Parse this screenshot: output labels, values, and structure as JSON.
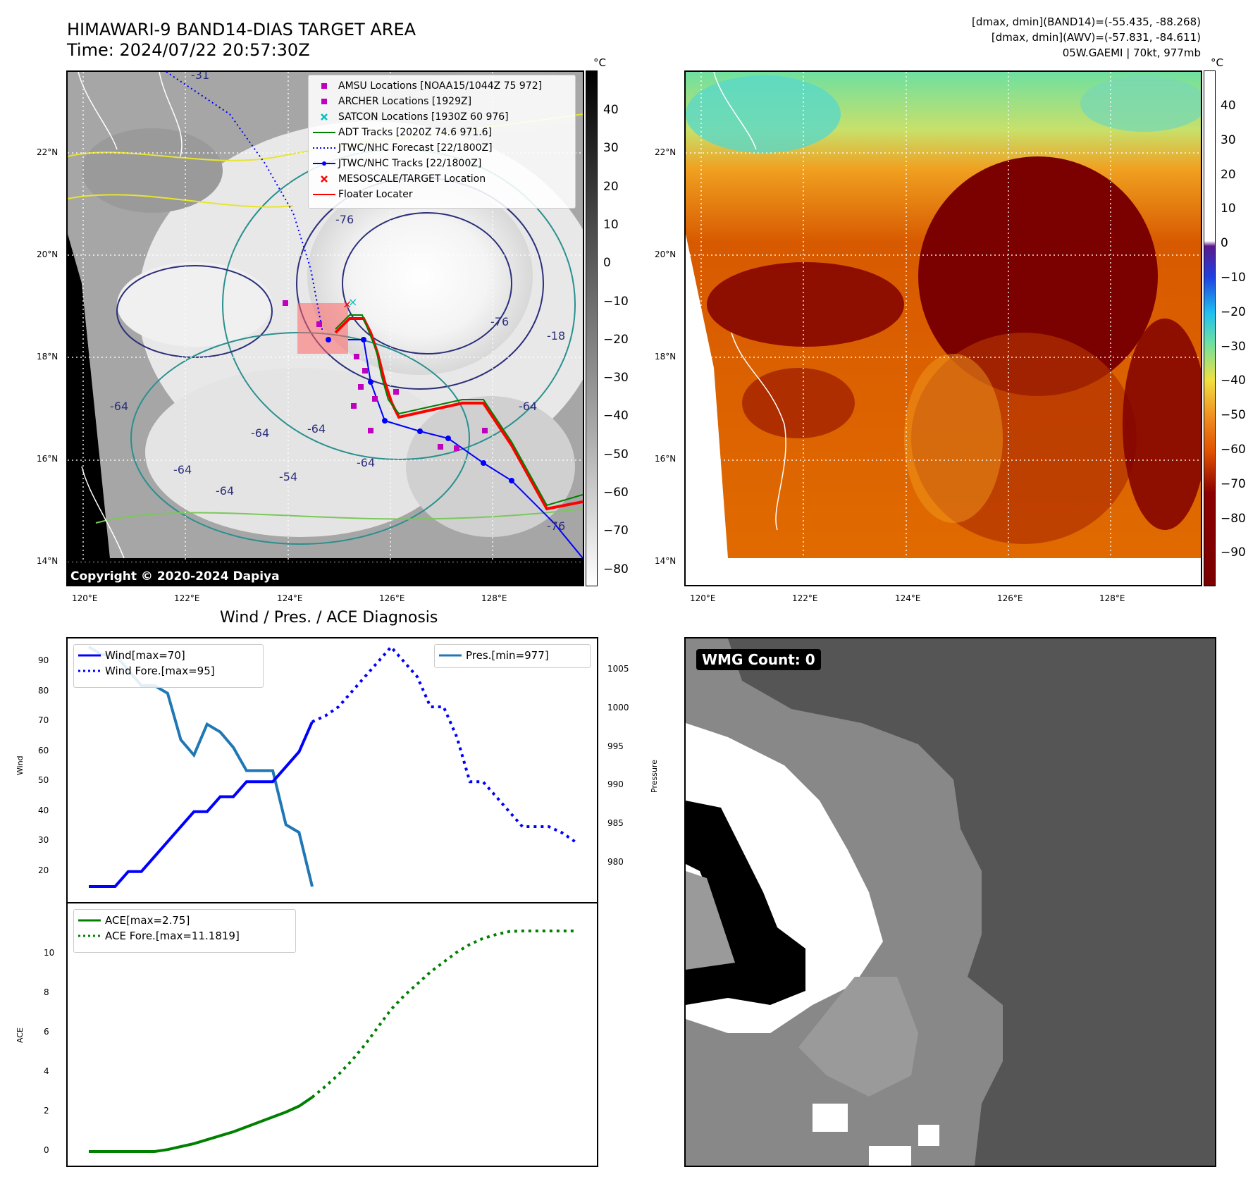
{
  "header": {
    "title_line1": "HIMAWARI-9 BAND14-DIAS TARGET AREA",
    "title_line2": "Time: 2024/07/22 20:57:30Z",
    "info_line1": "[dmax, dmin](BAND14)=(-55.435, -88.268)",
    "info_line2": "[dmax, dmin](AWV)=(-57.831, -84.611)",
    "info_line3": "05W.GAEMI | 70kt, 977mb"
  },
  "map_axes": {
    "lat_labels": [
      "22°N",
      "20°N",
      "18°N",
      "16°N",
      "14°N"
    ],
    "lon_labels": [
      "120°E",
      "122°E",
      "124°E",
      "126°E",
      "128°E"
    ]
  },
  "ir_map": {
    "legend": [
      {
        "label": "AMSU Locations [NOAA15/1044Z 75 972]",
        "symbol": "square",
        "color": "#bf00bf"
      },
      {
        "label": "ARCHER Locations [1929Z]",
        "symbol": "square",
        "color": "#bf00bf"
      },
      {
        "label": "SATCON Locations [1930Z 60 976]",
        "symbol": "x",
        "color": "#00bfbf"
      },
      {
        "label": "ADT Tracks [2020Z 74.6 971.6]",
        "symbol": "line",
        "color": "#008000"
      },
      {
        "label": "JTWC/NHC Forecast [22/1800Z]",
        "symbol": "dotted",
        "color": "#0000ff"
      },
      {
        "label": "JTWC/NHC Tracks [22/1800Z]",
        "symbol": "line-dot",
        "color": "#0000ff"
      },
      {
        "label": "MESOSCALE/TARGET Location",
        "symbol": "x",
        "color": "#ff0000"
      },
      {
        "label": "Floater Locater",
        "symbol": "line",
        "color": "#ff0000"
      }
    ],
    "contour_labels": [
      "-31",
      "-76",
      "-76",
      "-64",
      "-64",
      "-64",
      "-64",
      "-54",
      "-64",
      "-64",
      "-18",
      "-64",
      "-76"
    ],
    "copyright": "Copyright © 2020-2024 Dapiya",
    "colorbar_unit": "°C",
    "colorbar_ticks": [
      "40",
      "30",
      "20",
      "10",
      "0",
      "−10",
      "−20",
      "−30",
      "−40",
      "−50",
      "−60",
      "−70",
      "−80"
    ]
  },
  "awv_map": {
    "colorbar_unit": "°C",
    "colorbar_ticks": [
      "40",
      "30",
      "20",
      "10",
      "0",
      "−10",
      "−20",
      "−30",
      "−40",
      "−50",
      "−60",
      "−70",
      "−80",
      "−90"
    ]
  },
  "diagnosis": {
    "title": "Wind / Pres. / ACE Diagnosis",
    "wind_ylabel": "Wind",
    "pres_ylabel": "Pressure",
    "ace_ylabel": "ACE",
    "wind_ticks": [
      "90",
      "80",
      "70",
      "60",
      "50",
      "40",
      "30",
      "20"
    ],
    "pres_ticks": [
      "1005",
      "1000",
      "995",
      "990",
      "985",
      "980"
    ],
    "ace_ticks": [
      "10",
      "8",
      "6",
      "4",
      "2",
      "0"
    ],
    "legend_wind": "Wind[max=70]",
    "legend_wind_fore": "Wind Fore.[max=95]",
    "legend_pres": "Pres.[min=977]",
    "legend_ace": "ACE[max=2.75]",
    "legend_ace_fore": "ACE Fore.[max=11.1819]"
  },
  "wmg": {
    "label": "WMG Count: 0"
  },
  "chart_data": [
    {
      "type": "line",
      "name": "Wind",
      "x": [
        0,
        1,
        2,
        3,
        4,
        5,
        6,
        7,
        8,
        9,
        10,
        11,
        12,
        13,
        14,
        15,
        16,
        17
      ],
      "values": [
        15,
        15,
        15,
        20,
        20,
        25,
        30,
        35,
        40,
        40,
        45,
        45,
        50,
        50,
        50,
        55,
        60,
        70
      ],
      "ylim": [
        15,
        95
      ],
      "color": "#0000ff"
    },
    {
      "type": "line",
      "name": "Wind Fore.",
      "x": [
        17,
        18,
        19,
        20,
        21,
        22,
        23,
        24,
        25,
        26,
        27,
        28,
        29,
        30,
        31,
        32,
        33,
        34,
        35,
        36,
        37
      ],
      "values": [
        70,
        72,
        75,
        80,
        85,
        90,
        95,
        90,
        85,
        75,
        75,
        65,
        50,
        50,
        45,
        40,
        35,
        35,
        35,
        33,
        30
      ],
      "style": "dotted",
      "color": "#0000ff"
    },
    {
      "type": "line",
      "name": "Pres.",
      "x": [
        0,
        1,
        2,
        3,
        4,
        5,
        6,
        7,
        8,
        9,
        10,
        11,
        12,
        13,
        14,
        15,
        16,
        17
      ],
      "values": [
        1008,
        1007,
        1007,
        1005,
        1003,
        1003,
        1002,
        996,
        994,
        998,
        997,
        995,
        992,
        992,
        992,
        985,
        984,
        977
      ],
      "ylim": [
        977,
        1008
      ],
      "color": "#1f77b4"
    },
    {
      "type": "line",
      "name": "ACE",
      "x": [
        0,
        1,
        2,
        3,
        4,
        5,
        6,
        7,
        8,
        9,
        10,
        11,
        12,
        13,
        14,
        15,
        16,
        17
      ],
      "values": [
        0,
        0,
        0,
        0,
        0,
        0,
        0.1,
        0.25,
        0.4,
        0.6,
        0.8,
        1.0,
        1.25,
        1.5,
        1.75,
        2.0,
        2.3,
        2.75
      ],
      "ylim": [
        0,
        11.5
      ],
      "color": "#008000"
    },
    {
      "type": "line",
      "name": "ACE Fore.",
      "x": [
        17,
        18,
        19,
        20,
        21,
        22,
        23,
        24,
        25,
        26,
        27,
        28,
        29,
        30,
        31,
        32,
        33,
        34,
        35,
        36,
        37
      ],
      "values": [
        2.75,
        3.3,
        3.9,
        4.6,
        5.4,
        6.3,
        7.2,
        7.9,
        8.5,
        9.1,
        9.6,
        10.1,
        10.5,
        10.8,
        11.0,
        11.15,
        11.18,
        11.18,
        11.18,
        11.18,
        11.18
      ],
      "style": "dotted",
      "color": "#008000"
    }
  ]
}
